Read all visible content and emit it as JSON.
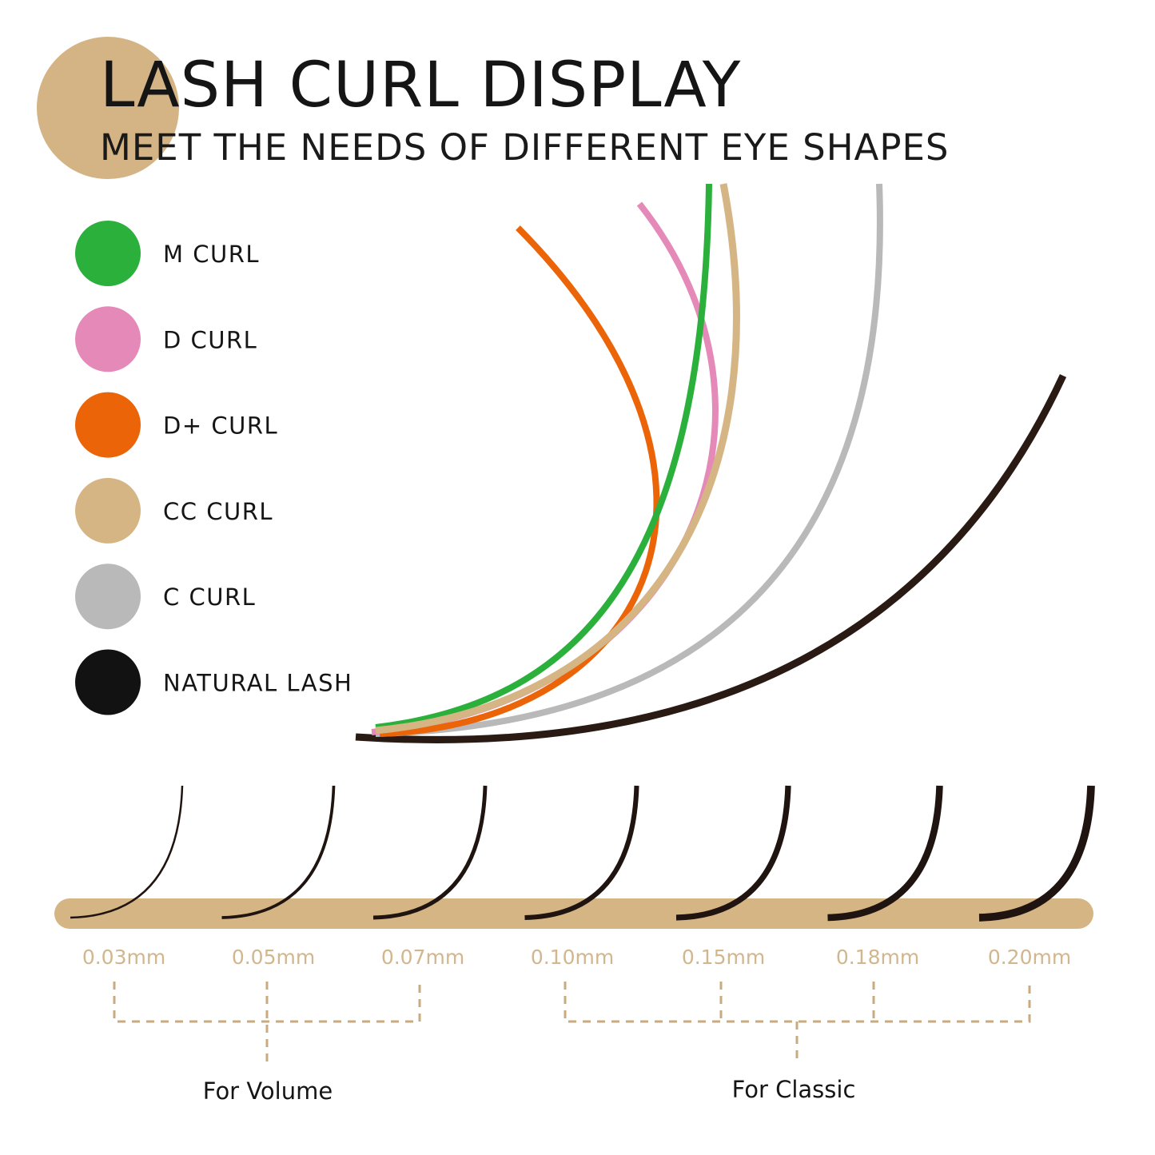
{
  "header": {
    "title": "LASH CURL DISPLAY",
    "subtitle": "MEET THE NEEDS OF DIFFERENT EYE SHAPES",
    "accent": "#d4b384"
  },
  "legend": [
    {
      "label": "M CURL",
      "color": "#2bb03c"
    },
    {
      "label": "D CURL",
      "color": "#e58ab8"
    },
    {
      "label": "D+ CURL",
      "color": "#ec6408"
    },
    {
      "label": "CC CURL",
      "color": "#d6b585"
    },
    {
      "label": "C CURL",
      "color": "#b9b9b9"
    },
    {
      "label": "NATURAL LASH",
      "color": "#121212"
    }
  ],
  "thickness": [
    "0.03mm",
    "0.05mm",
    "0.07mm",
    "0.10mm",
    "0.15mm",
    "0.18mm",
    "0.20mm"
  ],
  "groups": {
    "volume": "For Volume",
    "classic": "For Classic"
  }
}
